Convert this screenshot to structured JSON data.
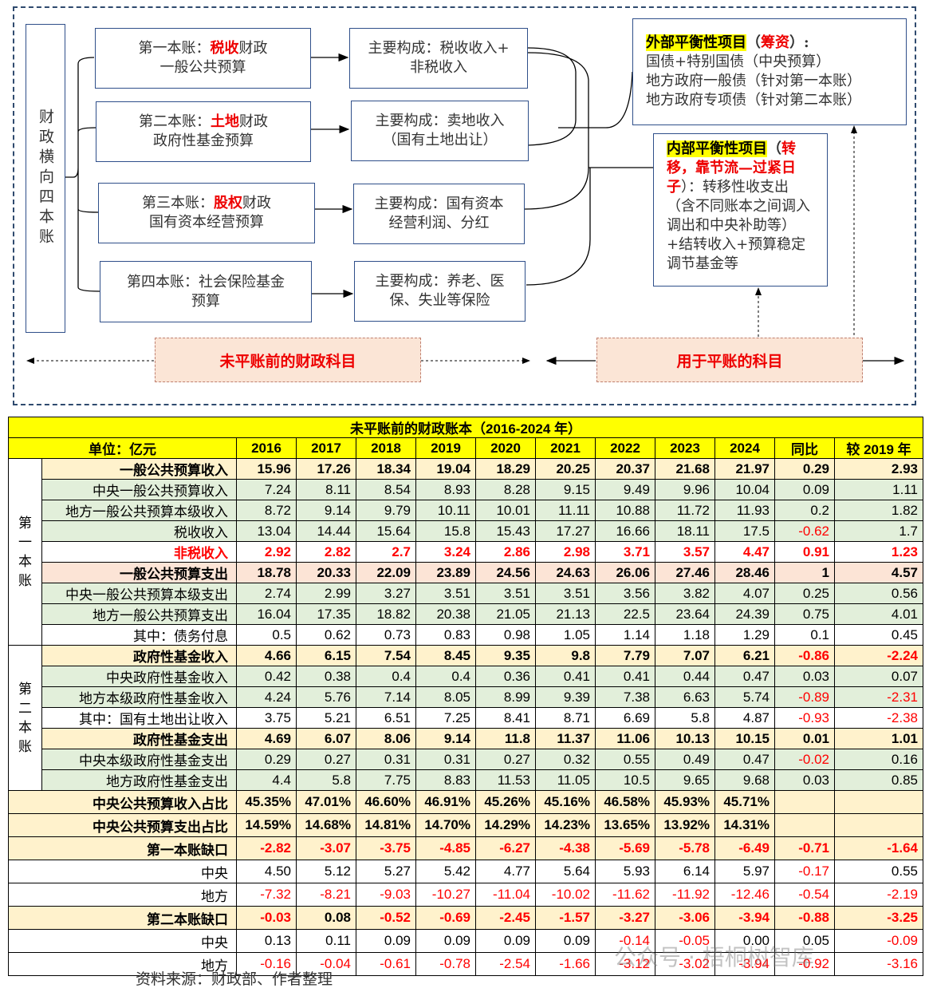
{
  "diagram": {
    "left_label": "财政横向四本账",
    "accounts": [
      {
        "pre": "第一本账：",
        "key": "税收",
        "post": "财政",
        "line2": "一般公共预算"
      },
      {
        "pre": "第二本账：",
        "key": "土地",
        "post": "财政",
        "line2": "政府性基金预算"
      },
      {
        "pre": "第三本账：",
        "key": "股权",
        "post": "财政",
        "line2": "国有资本经营预算"
      },
      {
        "pre": "第四本账：社会保险基金",
        "key": "",
        "post": "",
        "line2": "预算"
      }
    ],
    "components": [
      {
        "line1": "主要构成：税收收入+",
        "line2": "非税收入"
      },
      {
        "line1": "主要构成：卖地收入",
        "line2": "（国有土地出让）"
      },
      {
        "line1": "主要构成：国有资本",
        "line2": "经营利润、分红"
      },
      {
        "line1": "主要构成：养老、医",
        "line2": "保、失业等保险"
      }
    ],
    "external": {
      "title": "外部平衡性项目",
      "paren_open": "（",
      "red": "筹资",
      "paren_close": "）:",
      "lines": [
        "国债+特别国债（中央预算）",
        "地方政府一般债（针对第一本账）",
        "地方政府专项债（针对第二本账）"
      ]
    },
    "internal": {
      "title": "内部平衡性项目",
      "paren_open": "（",
      "red": "转移，靠节流—过紧日子",
      "rest": "）：转移性收支出（含不同账本之间调入调出和中央补助等）+结转收入+预算稳定调节基金等"
    },
    "bottom_left": "未平账前的财政科目",
    "bottom_right": "用于平账的科目"
  },
  "table": {
    "title": "未平账前的财政账本（2016-2024 年）",
    "unit": "单位：亿元",
    "headers": [
      "2016",
      "2017",
      "2018",
      "2019",
      "2020",
      "2021",
      "2022",
      "2023",
      "2024",
      "同比",
      "较 2019 年"
    ],
    "groups": [
      {
        "label": "第一本账",
        "rows": 9
      },
      {
        "label": "第二本账",
        "rows": 7
      }
    ],
    "rows": [
      {
        "label": "一般公共预算收入",
        "style": "cream",
        "bold": true,
        "values": [
          "15.96",
          "17.26",
          "18.34",
          "19.04",
          "18.29",
          "20.25",
          "20.37",
          "21.68",
          "21.97",
          "0.29",
          "2.93"
        ]
      },
      {
        "label": "中央一般公共预算收入",
        "style": "green",
        "values": [
          "7.24",
          "8.11",
          "8.54",
          "8.93",
          "8.28",
          "9.15",
          "9.49",
          "9.96",
          "10.04",
          "0.09",
          "1.11"
        ]
      },
      {
        "label": "地方一般公共预算本级收入",
        "style": "green",
        "values": [
          "8.72",
          "9.14",
          "9.79",
          "10.11",
          "10.01",
          "11.11",
          "10.88",
          "11.72",
          "11.93",
          "0.2",
          "1.82"
        ]
      },
      {
        "label": "税收收入",
        "style": "green",
        "values": [
          "13.04",
          "14.44",
          "15.64",
          "15.8",
          "15.43",
          "17.27",
          "16.66",
          "18.11",
          "17.5",
          "-0.62",
          "1.7"
        ]
      },
      {
        "label": "非税收入",
        "style": "white",
        "bold": true,
        "red": true,
        "values": [
          "2.92",
          "2.82",
          "2.7",
          "3.24",
          "2.86",
          "2.98",
          "3.71",
          "3.57",
          "4.47",
          "0.91",
          "1.23"
        ]
      },
      {
        "label": "一般公共预算支出",
        "style": "pink",
        "bold": true,
        "values": [
          "18.78",
          "20.33",
          "22.09",
          "23.89",
          "24.56",
          "24.63",
          "26.06",
          "27.46",
          "28.46",
          "1",
          "4.57"
        ]
      },
      {
        "label": "中央一般公共预算本级支出",
        "style": "green",
        "values": [
          "2.74",
          "2.99",
          "3.27",
          "3.51",
          "3.51",
          "3.51",
          "3.56",
          "3.82",
          "4.07",
          "0.25",
          "0.56"
        ]
      },
      {
        "label": "地方一般公共预算支出",
        "style": "green",
        "values": [
          "16.04",
          "17.35",
          "18.82",
          "20.38",
          "21.05",
          "21.13",
          "22.5",
          "23.64",
          "24.39",
          "0.75",
          "4.01"
        ]
      },
      {
        "label": "其中：债务付息",
        "style": "white",
        "values": [
          "0.5",
          "0.62",
          "0.73",
          "0.83",
          "0.98",
          "1.05",
          "1.14",
          "1.18",
          "1.29",
          "0.1",
          "0.45"
        ]
      },
      {
        "label": "政府性基金收入",
        "style": "cream",
        "bold": true,
        "values": [
          "4.66",
          "6.15",
          "7.54",
          "8.45",
          "9.35",
          "9.8",
          "7.79",
          "7.07",
          "6.21",
          "-0.86",
          "-2.24"
        ]
      },
      {
        "label": "中央政府性基金收入",
        "style": "green",
        "values": [
          "0.42",
          "0.38",
          "0.4",
          "0.4",
          "0.36",
          "0.41",
          "0.41",
          "0.44",
          "0.47",
          "0.03",
          "0.07"
        ]
      },
      {
        "label": "地方本级政府性基金收入",
        "style": "green",
        "values": [
          "4.24",
          "5.76",
          "7.14",
          "8.05",
          "8.99",
          "9.39",
          "7.38",
          "6.63",
          "5.74",
          "-0.89",
          "-2.31"
        ]
      },
      {
        "label": "其中：国有土地出让收入",
        "style": "white",
        "values": [
          "3.75",
          "5.21",
          "6.51",
          "7.25",
          "8.41",
          "8.71",
          "6.69",
          "5.8",
          "4.87",
          "-0.93",
          "-2.38"
        ]
      },
      {
        "label": "政府性基金支出",
        "style": "cream",
        "bold": true,
        "values": [
          "4.69",
          "6.07",
          "8.06",
          "9.14",
          "11.8",
          "11.37",
          "11.06",
          "10.13",
          "10.15",
          "0.01",
          "1.01"
        ]
      },
      {
        "label": "中央本级政府性基金支出",
        "style": "green",
        "values": [
          "0.29",
          "0.27",
          "0.31",
          "0.31",
          "0.27",
          "0.32",
          "0.55",
          "0.49",
          "0.47",
          "-0.02",
          "0.16"
        ]
      },
      {
        "label": "地方政府性基金支出",
        "style": "green",
        "values": [
          "4.4",
          "5.8",
          "7.75",
          "8.83",
          "11.53",
          "11.05",
          "10.5",
          "9.65",
          "9.68",
          "0.03",
          "0.85"
        ]
      },
      {
        "label": "中央公共预算收入占比",
        "style": "cream",
        "bold": true,
        "values": [
          "45.35%",
          "47.01%",
          "46.60%",
          "46.91%",
          "45.26%",
          "45.16%",
          "46.58%",
          "45.93%",
          "45.71%",
          "",
          ""
        ]
      },
      {
        "label": "中央公共预算支出占比",
        "style": "cream",
        "bold": true,
        "values": [
          "14.59%",
          "14.68%",
          "14.81%",
          "14.70%",
          "14.29%",
          "14.23%",
          "13.65%",
          "13.92%",
          "14.31%",
          "",
          ""
        ]
      },
      {
        "label": "第一本账缺口",
        "style": "cream",
        "bold": true,
        "values": [
          "-2.82",
          "-3.07",
          "-3.75",
          "-4.85",
          "-6.27",
          "-4.38",
          "-5.69",
          "-5.78",
          "-6.49",
          "-0.71",
          "-1.64"
        ]
      },
      {
        "label": "中央",
        "style": "white",
        "values": [
          "4.50",
          "5.12",
          "5.27",
          "5.42",
          "4.77",
          "5.64",
          "5.93",
          "6.14",
          "5.97",
          "-0.17",
          "0.55"
        ]
      },
      {
        "label": "地方",
        "style": "white",
        "values": [
          "-7.32",
          "-8.21",
          "-9.03",
          "-10.27",
          "-11.04",
          "-10.02",
          "-11.62",
          "-11.92",
          "-12.46",
          "-0.54",
          "-2.19"
        ]
      },
      {
        "label": "第二本账缺口",
        "style": "cream",
        "bold": true,
        "values": [
          "-0.03",
          "0.08",
          "-0.52",
          "-0.69",
          "-2.45",
          "-1.57",
          "-3.27",
          "-3.06",
          "-3.94",
          "-0.88",
          "-3.25"
        ]
      },
      {
        "label": "中央",
        "style": "white",
        "values": [
          "0.13",
          "0.11",
          "0.09",
          "0.09",
          "0.09",
          "0.09",
          "-0.14",
          "-0.05",
          "0.00",
          "0.05",
          "-0.09"
        ]
      },
      {
        "label": "地方",
        "style": "white",
        "values": [
          "-0.16",
          "-0.04",
          "-0.61",
          "-0.78",
          "-2.54",
          "-1.66",
          "-3.12",
          "-3.02",
          "-3.94",
          "-0.92",
          "-3.16"
        ]
      }
    ]
  },
  "source": "资料来源：财政部、作者整理",
  "watermark": "公众号 · 梧桐树智库",
  "colors": {
    "title": "#ffff00",
    "cream": "#fff2cc",
    "green": "#e2efda",
    "pink": "#fce4d6",
    "white": "#ffffff",
    "negative": "#ff0000",
    "tag": "#fbe5d6"
  }
}
